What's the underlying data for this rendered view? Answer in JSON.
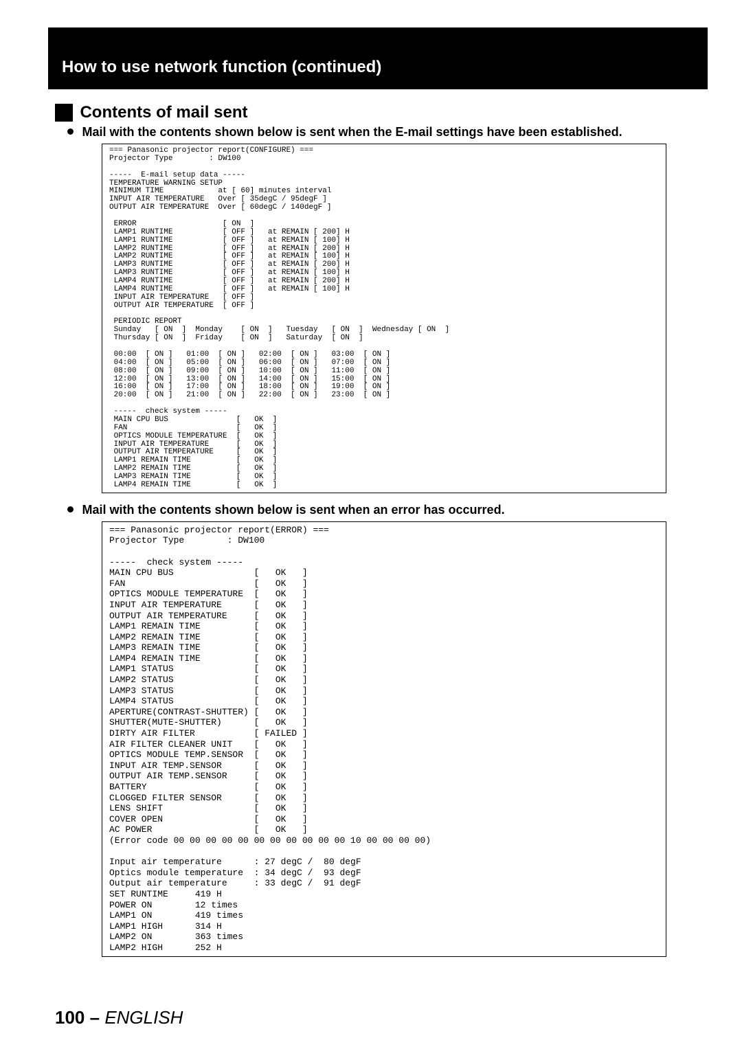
{
  "banner": {
    "title": "How to use network function (continued)"
  },
  "section": {
    "heading": "Contents of mail sent"
  },
  "bullet1": "Mail with the contents shown below is sent when the E-mail settings have been established.",
  "bullet2": "Mail with the contents shown below is sent when an error has occurred.",
  "report1": {
    "header_line": "=== Panasonic projector report(CONFIGURE) ===",
    "projector_type_label": "Projector Type",
    "projector_type_value": "DW100",
    "email_setup_heading": "-----  E-mail setup data -----",
    "temp_warning_heading": "TEMPERATURE WARNING SETUP",
    "min_time_label": "MINIMUM TIME",
    "min_time_value": "at [ 60] minutes interval",
    "input_air_label": "INPUT AIR TEMPERATURE",
    "input_air_value": "Over [ 35degC / 95degF ]",
    "output_air_label": "OUTPUT AIR TEMPERATURE",
    "output_air_value": "Over [ 60degC / 140degF ]",
    "error_rows": [
      [
        "ERROR",
        "[ ON  ]",
        "",
        "",
        ""
      ],
      [
        "LAMP1 RUNTIME",
        "[ OFF ]",
        "at REMAIN [",
        "200]",
        "H"
      ],
      [
        "LAMP1 RUNTIME",
        "[ OFF ]",
        "at REMAIN [",
        "100]",
        "H"
      ],
      [
        "LAMP2 RUNTIME",
        "[ OFF ]",
        "at REMAIN [",
        "200]",
        "H"
      ],
      [
        "LAMP2 RUNTIME",
        "[ OFF ]",
        "at REMAIN [",
        "100]",
        "H"
      ],
      [
        "LAMP3 RUNTIME",
        "[ OFF ]",
        "at REMAIN [",
        "200]",
        "H"
      ],
      [
        "LAMP3 RUNTIME",
        "[ OFF ]",
        "at REMAIN [",
        "100]",
        "H"
      ],
      [
        "LAMP4 RUNTIME",
        "[ OFF ]",
        "at REMAIN [",
        "200]",
        "H"
      ],
      [
        "LAMP4 RUNTIME",
        "[ OFF ]",
        "at REMAIN [",
        "100]",
        "H"
      ],
      [
        "INPUT AIR TEMPERATURE",
        "[ OFF ]",
        "",
        "",
        ""
      ],
      [
        "OUTPUT AIR TEMPERATURE",
        "[ OFF ]",
        "",
        "",
        ""
      ]
    ],
    "periodic_heading": "PERIODIC REPORT",
    "days_line1": "Sunday   [ ON  ]  Monday    [ ON  ]   Tuesday   [ ON  ]  Wednesday [ ON  ]",
    "days_line2": "Thursday [ ON  ]  Friday    [ ON  ]   Saturday  [ ON  ]",
    "times": [
      [
        "00:00",
        "ON",
        "01:00",
        "ON",
        "02:00",
        "ON",
        "03:00",
        "ON"
      ],
      [
        "04:00",
        "ON",
        "05:00",
        "ON",
        "06:00",
        "ON",
        "07:00",
        "ON"
      ],
      [
        "08:00",
        "ON",
        "09:00",
        "ON",
        "10:00",
        "ON",
        "11:00",
        "ON"
      ],
      [
        "12:00",
        "ON",
        "13:00",
        "ON",
        "14:00",
        "ON",
        "15:00",
        "ON"
      ],
      [
        "16:00",
        "ON",
        "17:00",
        "ON",
        "18:00",
        "ON",
        "19:00",
        "ON"
      ],
      [
        "20:00",
        "ON",
        "21:00",
        "ON",
        "22:00",
        "ON",
        "23:00",
        "ON"
      ]
    ],
    "check_heading": "-----  check system -----",
    "check_rows": [
      [
        "MAIN CPU BUS",
        "OK"
      ],
      [
        "FAN",
        "OK"
      ],
      [
        "OPTICS MODULE TEMPERATURE",
        "OK"
      ],
      [
        "INPUT AIR TEMPERATURE",
        "OK"
      ],
      [
        "OUTPUT AIR TEMPERATURE",
        "OK"
      ],
      [
        "LAMP1 REMAIN TIME",
        "OK"
      ],
      [
        "LAMP2 REMAIN TIME",
        "OK"
      ],
      [
        "LAMP3 REMAIN TIME",
        "OK"
      ],
      [
        "LAMP4 REMAIN TIME",
        "OK"
      ]
    ]
  },
  "report2": {
    "header_line": "=== Panasonic projector report(ERROR) ===",
    "projector_type_label": "Projector Type",
    "projector_type_value": "DW100",
    "check_heading": "-----  check system -----",
    "check_rows": [
      [
        "MAIN CPU BUS",
        "OK"
      ],
      [
        "FAN",
        "OK"
      ],
      [
        "OPTICS MODULE TEMPERATURE",
        "OK"
      ],
      [
        "INPUT AIR TEMPERATURE",
        "OK"
      ],
      [
        "OUTPUT AIR TEMPERATURE",
        "OK"
      ],
      [
        "LAMP1 REMAIN TIME",
        "OK"
      ],
      [
        "LAMP2 REMAIN TIME",
        "OK"
      ],
      [
        "LAMP3 REMAIN TIME",
        "OK"
      ],
      [
        "LAMP4 REMAIN TIME",
        "OK"
      ],
      [
        "LAMP1 STATUS",
        "OK"
      ],
      [
        "LAMP2 STATUS",
        "OK"
      ],
      [
        "LAMP3 STATUS",
        "OK"
      ],
      [
        "LAMP4 STATUS",
        "OK"
      ],
      [
        "APERTURE(CONTRAST-SHUTTER)",
        "OK"
      ],
      [
        "SHUTTER(MUTE-SHUTTER)",
        "OK"
      ],
      [
        "DIRTY AIR FILTER",
        "FAILED"
      ],
      [
        "AIR FILTER CLEANER UNIT",
        "OK"
      ],
      [
        "OPTICS MODULE TEMP.SENSOR",
        "OK"
      ],
      [
        "INPUT AIR TEMP.SENSOR",
        "OK"
      ],
      [
        "OUTPUT AIR TEMP.SENSOR",
        "OK"
      ],
      [
        "BATTERY",
        "OK"
      ],
      [
        "CLOGGED FILTER SENSOR",
        "OK"
      ],
      [
        "LENS SHIFT",
        "OK"
      ],
      [
        "COVER OPEN",
        "OK"
      ],
      [
        "AC POWER",
        "OK"
      ]
    ],
    "error_code_line": "(Error code 00 00 00 00 00 00 00 00 00 00 00 10 00 00 00 00)",
    "temps": [
      [
        "Input air temperature",
        "27 degC /  80 degF"
      ],
      [
        "Optics module temperature",
        "34 degC /  93 degF"
      ],
      [
        "Output air temperature",
        "33 degC /  91 degF"
      ]
    ],
    "stats": [
      [
        "SET RUNTIME",
        "419 H"
      ],
      [
        "POWER ON",
        "12 times"
      ],
      [
        "LAMP1 ON",
        "419 times"
      ],
      [
        "LAMP1 HIGH",
        "314 H"
      ],
      [
        "LAMP2 ON",
        "363 times"
      ],
      [
        "LAMP2 HIGH",
        "252 H"
      ]
    ]
  },
  "footer": {
    "page_number": "100",
    "dash": " – ",
    "language": "ENGLISH"
  },
  "colors": {
    "background": "#ffffff",
    "text": "#000000",
    "banner_bg": "#000000",
    "banner_text": "#ffffff",
    "box_border": "#000000"
  },
  "typography": {
    "banner_fontsize_pt": 18,
    "heading_fontsize_pt": 18,
    "bullet_fontsize_pt": 14,
    "report1_fontsize_pt": 8,
    "report2_fontsize_pt": 10,
    "footer_fontsize_pt": 20
  }
}
